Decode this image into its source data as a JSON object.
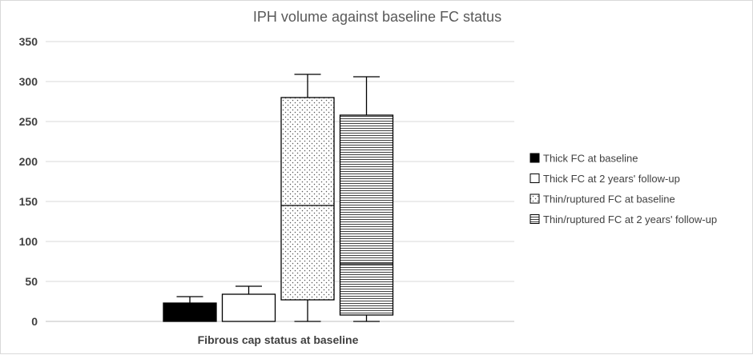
{
  "chart_data": {
    "type": "box",
    "title": "IPH volume against baseline FC status",
    "xlabel": "Fibrous cap status at baseline",
    "ylabel": "",
    "ylim": [
      0,
      350
    ],
    "yticks": [
      0,
      50,
      100,
      150,
      200,
      250,
      300,
      350
    ],
    "grid": true,
    "legend_position": "right",
    "series": [
      {
        "name": "Thick FC at baseline",
        "pattern": "solid-black",
        "min": 0,
        "q1": 0,
        "median": 0,
        "q3": 23,
        "max": 31
      },
      {
        "name": "Thick FC at 2 years' follow-up",
        "pattern": "white",
        "min": 0,
        "q1": 0,
        "median": 0,
        "q3": 34,
        "max": 44
      },
      {
        "name": "Thin/ruptured FC at baseline",
        "pattern": "dots",
        "min": 0,
        "q1": 27,
        "median": 145,
        "q3": 280,
        "max": 309
      },
      {
        "name": "Thin/ruptured FC at 2 years' follow-up",
        "pattern": "horizontal-lines",
        "min": 0,
        "q1": 8,
        "median": 72,
        "q3": 258,
        "max": 306
      }
    ]
  }
}
